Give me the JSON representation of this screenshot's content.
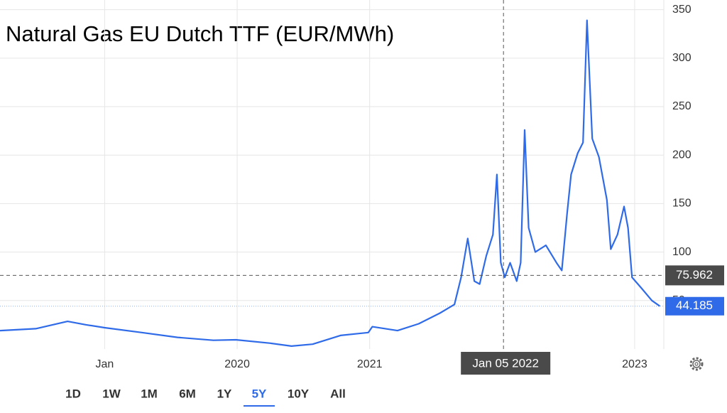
{
  "chart_data": {
    "type": "line",
    "title": "Natural Gas EU Dutch TTF (EUR/MWh)",
    "x": [
      2018.21,
      2018.48,
      2018.72,
      2018.86,
      2019.0,
      2019.28,
      2019.55,
      2019.82,
      2019.99,
      2020.25,
      2020.41,
      2020.57,
      2020.78,
      2020.99,
      2021.02,
      2021.21,
      2021.37,
      2021.53,
      2021.64,
      2021.69,
      2021.74,
      2021.79,
      2021.83,
      2021.88,
      2021.93,
      2021.96,
      2021.99,
      2022.02,
      2022.06,
      2022.11,
      2022.14,
      2022.17,
      2022.2,
      2022.25,
      2022.33,
      2022.41,
      2022.45,
      2022.49,
      2022.52,
      2022.57,
      2022.61,
      2022.64,
      2022.68,
      2022.73,
      2022.79,
      2022.82,
      2022.87,
      2022.92,
      2022.95,
      2022.98,
      2023.05,
      2023.13,
      2023.19
    ],
    "series": [
      {
        "color": "#2f6be8",
        "values": [
          19,
          21,
          28.5,
          25,
          22,
          17,
          12,
          9,
          9.5,
          6,
          3,
          5,
          14,
          17,
          23,
          19,
          26,
          37,
          46,
          74,
          114,
          70,
          67,
          96,
          118,
          180,
          89,
          74,
          89,
          70,
          89,
          226,
          125,
          100,
          107,
          89,
          81,
          140,
          180,
          202,
          213,
          339,
          217,
          198,
          154,
          103,
          118,
          147,
          125,
          74,
          63,
          50,
          44.185
        ]
      }
    ],
    "xlim": [
      2018.21,
      2023.22
    ],
    "ylim": [
      0,
      360
    ],
    "xticks": [
      {
        "value": 2019,
        "label": "Jan"
      },
      2020,
      2021,
      2023
    ],
    "yticks": [
      50,
      100,
      150,
      200,
      250,
      300,
      350
    ],
    "grid": true,
    "crosshair": {
      "x": 2022.01,
      "x_label": "Jan 05 2022",
      "y": 75.962
    },
    "ranges": [
      "1D",
      "1W",
      "1M",
      "6M",
      "1Y",
      "5Y",
      "10Y",
      "All"
    ],
    "selected_range": "5Y"
  }
}
